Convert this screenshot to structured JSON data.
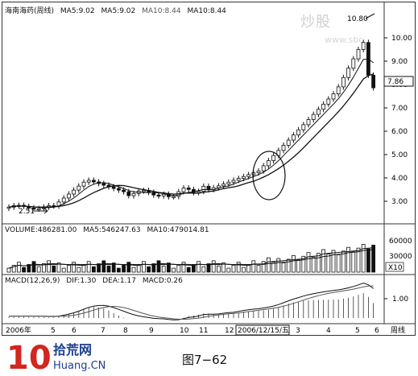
{
  "price_header": {
    "name": "海南海药(周线)",
    "ma5a": "MA5:9.02",
    "ma5b": "MA5:9.02",
    "ma10a": "MA10:8.44",
    "ma10b": "MA10:8.44"
  },
  "volume_header": {
    "volume": "VOLUME:486281.00",
    "ma5": "MA5:546247.63",
    "ma10": "MA10:479014.81"
  },
  "macd_header": {
    "label": "MACD(12,26,9)",
    "dif": "DIF:1.30",
    "dea": "DEA:1.17",
    "macd": "MACD:0.26"
  },
  "annotations": {
    "high": "10.80",
    "low": "2.51",
    "current_price": "7.86"
  },
  "price_axis": [
    "10.00",
    "9.00",
    "8.00",
    "7.00",
    "6.00",
    "5.00",
    "4.00",
    "3.00"
  ],
  "volume_axis": [
    "60000",
    "30000"
  ],
  "volume_unit": "X10",
  "macd_axis": [
    "1.00"
  ],
  "time_axis": {
    "labels": [
      "2006年",
      "5",
      "6",
      "7",
      "8",
      "9",
      "10",
      "11",
      "12",
      "2006/12/15/五",
      "3",
      "4",
      "5",
      "6"
    ],
    "period": "周线"
  },
  "watermark": {
    "text": "炒股",
    "site": "www.sbc"
  },
  "footer": {
    "logo_number": "10",
    "logo_cn": "拾荒网",
    "logo_domain": "Huang.CN",
    "caption": "图7−62"
  },
  "colors": {
    "up": "#111111",
    "down": "#111111",
    "ma": "#111111",
    "logo_red": "#d2261e",
    "logo_blue": "#1c3f8f"
  }
}
